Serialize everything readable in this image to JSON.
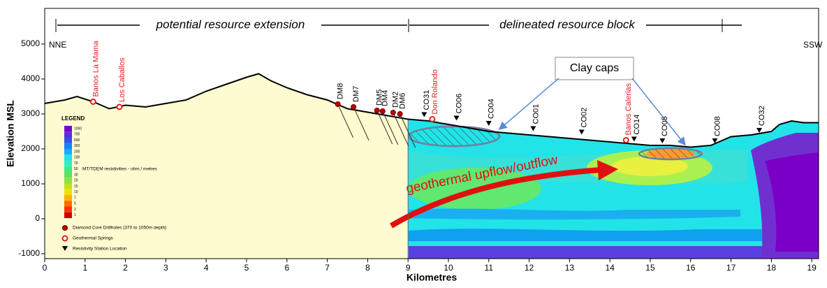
{
  "chart_data": {
    "type": "cross-section",
    "x_label": "Kilometres",
    "y_label": "Elevation MSL",
    "xlim": [
      0,
      19.17
    ],
    "ylim": [
      -1140,
      6020
    ],
    "xticks": [
      0,
      1,
      2,
      3,
      4,
      5,
      6,
      7,
      8,
      9,
      10,
      11,
      12,
      13,
      14,
      15,
      16,
      17,
      18,
      19
    ],
    "yticks": [
      -1000,
      0,
      1000,
      2000,
      3000,
      4000,
      5000
    ],
    "topography": {
      "x": [
        0,
        0.5,
        0.8,
        1.2,
        1.6,
        2,
        2.5,
        3,
        3.5,
        4,
        4.5,
        5,
        5.3,
        5.6,
        6,
        6.5,
        7,
        7.5,
        8,
        8.5,
        9,
        9.5,
        10,
        10.5,
        11,
        12,
        13,
        14,
        15,
        15.5,
        16,
        16.5,
        17,
        17.5,
        18,
        18.2,
        18.5,
        18.8
      ],
      "values": [
        3300,
        3400,
        3500,
        3350,
        3150,
        3250,
        3200,
        3300,
        3400,
        3650,
        3850,
        4050,
        4150,
        3950,
        3750,
        3550,
        3400,
        3150,
        3050,
        2950,
        2850,
        2800,
        2700,
        2600,
        2500,
        2400,
        2300,
        2200,
        2100,
        2100,
        2050,
        2100,
        2350,
        2400,
        2500,
        2700,
        2800,
        2750
      ]
    },
    "series": [
      {
        "name": "Diamond Core Drillholes (370 to 1050m depth)",
        "marker": "dot",
        "color": "#c00000",
        "labels": [
          "DM8",
          "DM7",
          "DM5",
          "DM4",
          "DM2",
          "DM6"
        ],
        "x": [
          7.26,
          7.65,
          8.23,
          8.37,
          8.63,
          8.8
        ],
        "values": [
          3280,
          3200,
          3100,
          3080,
          3040,
          3000
        ]
      },
      {
        "name": "Geothermal Springs",
        "marker": "ring",
        "color": "#e02020",
        "labels": [
          "Banos La Mama",
          "Los Caballos",
          "Don Rolando",
          "Banos Calerias"
        ],
        "x": [
          1.2,
          1.85,
          9.6,
          14.4
        ],
        "values": [
          3350,
          3200,
          2850,
          2250
        ]
      },
      {
        "name": "Resistivity Station Location",
        "marker": "triangle",
        "color": "#000000",
        "labels": [
          "CO31",
          "CO06",
          "CO04",
          "CO01",
          "CO02",
          "CO14",
          "CO05",
          "CO08",
          "CO32"
        ],
        "x": [
          9.4,
          10.2,
          11.0,
          12.1,
          13.3,
          14.6,
          15.3,
          16.6,
          17.7
        ],
        "values": [
          2850,
          2750,
          2600,
          2450,
          2350,
          2150,
          2100,
          2100,
          2400
        ]
      }
    ],
    "annotations": {
      "left_span": "potential resource extension",
      "right_span": "delineated resource block",
      "left_end": "NNE",
      "right_end": "SSW",
      "clay_caps": "Clay caps",
      "upflow": "geothermal upflow/outflow"
    },
    "legend": {
      "title": "LEGEND",
      "colorbar_label": "MT/TDEM resistivities - ohm / metres",
      "colorbar_ticks": [
        1000,
        700,
        500,
        300,
        200,
        100,
        70,
        50,
        30,
        20,
        15,
        10,
        7,
        5,
        2,
        1
      ],
      "colorbar_colors": [
        "#7a00c8",
        "#5a2ee0",
        "#3050f0",
        "#1a80ff",
        "#10b0ff",
        "#20e0f0",
        "#30f0c0",
        "#40e890",
        "#60e060",
        "#90e040",
        "#c0e020",
        "#f0e000",
        "#ffb000",
        "#ff7000",
        "#ff3000",
        "#d00000"
      ]
    }
  }
}
